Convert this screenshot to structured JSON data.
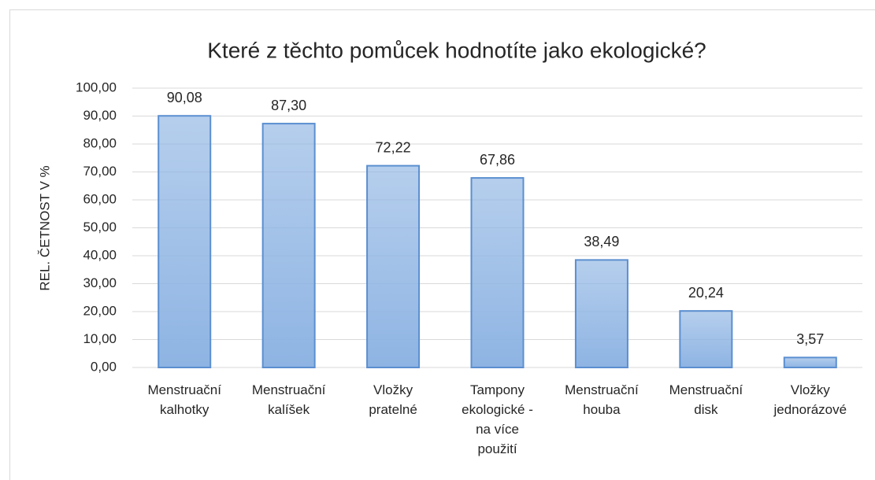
{
  "chart_data": {
    "type": "bar",
    "title": "Které z těchto pomůcek hodnotíte jako ekologické?",
    "y_label": "REL. ČETNOST V %",
    "categories": [
      [
        "Menstruační",
        "kalhotky"
      ],
      [
        "Menstruační",
        "kalíšek"
      ],
      [
        "Vložky",
        "pratelné"
      ],
      [
        "Tampony",
        "ekologické -",
        "na více",
        "použití"
      ],
      [
        "Menstruační",
        "houba"
      ],
      [
        "Menstruační",
        "disk"
      ],
      [
        "Vložky",
        "jednorázové"
      ]
    ],
    "values": [
      90.08,
      87.3,
      72.22,
      67.86,
      38.49,
      20.24,
      3.57
    ],
    "value_labels": [
      "90,08",
      "87,30",
      "72,22",
      "67,86",
      "38,49",
      "20,24",
      "3,57"
    ],
    "color": "#8eb4e3",
    "ylim": [
      0,
      100
    ],
    "yticks": [
      {
        "value": 0,
        "label": "0,00"
      },
      {
        "value": 10,
        "label": "10,00"
      },
      {
        "value": 20,
        "label": "20,00"
      },
      {
        "value": 30,
        "label": "30,00"
      },
      {
        "value": 40,
        "label": "40,00"
      },
      {
        "value": 50,
        "label": "50,00"
      },
      {
        "value": 60,
        "label": "60,00"
      },
      {
        "value": 70,
        "label": "70,00"
      },
      {
        "value": 80,
        "label": "80,00"
      },
      {
        "value": 90,
        "label": "90,00"
      },
      {
        "value": 100,
        "label": "100,00"
      }
    ],
    "grid": true
  }
}
